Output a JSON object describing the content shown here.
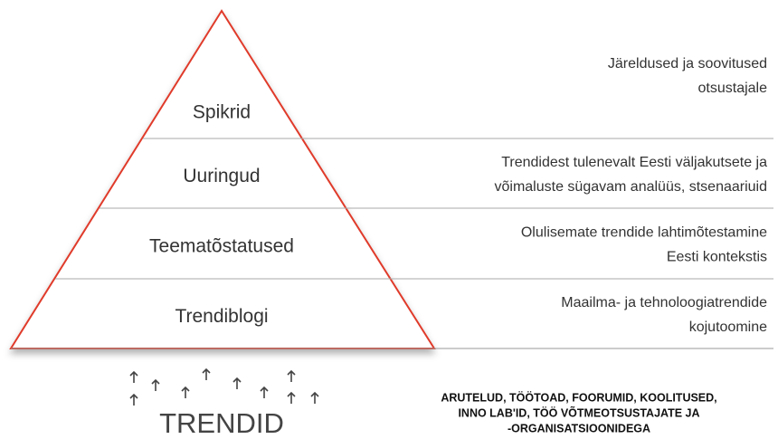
{
  "levels": [
    {
      "label": "Spikrid",
      "description": [
        "Järeldused ja soovitused",
        "otsustajale"
      ]
    },
    {
      "label": "Uuringud",
      "description": [
        "Trendidest tulenevalt Eesti väljakutsete ja",
        "võimaluste sügavam analüüs, stsenaariuid"
      ]
    },
    {
      "label": "Teematõstatused",
      "description": [
        "Olulisemate trendide lahtimõtestamine",
        "Eesti kontekstis"
      ]
    },
    {
      "label": "Trendiblogi",
      "description": [
        "Maailma- ja tehnoloogiatrendide",
        "kojutoomine"
      ]
    }
  ],
  "footer": {
    "label": "TRENDID",
    "caption": [
      "ARUTELUD, TÖÖTOAD, FOORUMID, KOOLITUSED,",
      "INNO LAB'ID, TÖÖ VÕTMEOTSUSTAJATE JA",
      "-ORGANISATSIOONIDEGA"
    ]
  }
}
